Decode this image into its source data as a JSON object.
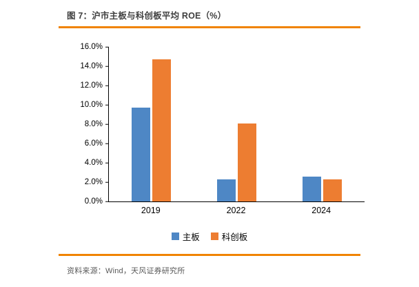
{
  "figure": {
    "title": "图 7：沪市主板与科创板平均 ROE（%）",
    "source": "资料来源：Wind，天风证券研究所"
  },
  "colors": {
    "accent_rule_orange": "#F08300",
    "main_board_blue": "#4E87C5",
    "star_market_orange": "#ED7D31",
    "title_text": "#3f3f3f",
    "source_text": "#595959"
  },
  "chart_data": {
    "type": "bar",
    "title": "沪市主板与科创板平均 ROE（%）",
    "categories": [
      "2019",
      "2022",
      "2024"
    ],
    "series": [
      {
        "name": "主板",
        "color": "#4E87C5",
        "values": [
          9.7,
          2.3,
          2.6
        ]
      },
      {
        "name": "科创板",
        "color": "#ED7D31",
        "values": [
          14.7,
          8.1,
          2.3
        ]
      }
    ],
    "ylabel": "",
    "xlabel": "",
    "ylim": [
      0,
      16
    ],
    "yticks": [
      "0.0%",
      "2.0%",
      "4.0%",
      "6.0%",
      "8.0%",
      "10.0%",
      "12.0%",
      "14.0%",
      "16.0%"
    ],
    "grid": false,
    "legend_position": "bottom"
  }
}
